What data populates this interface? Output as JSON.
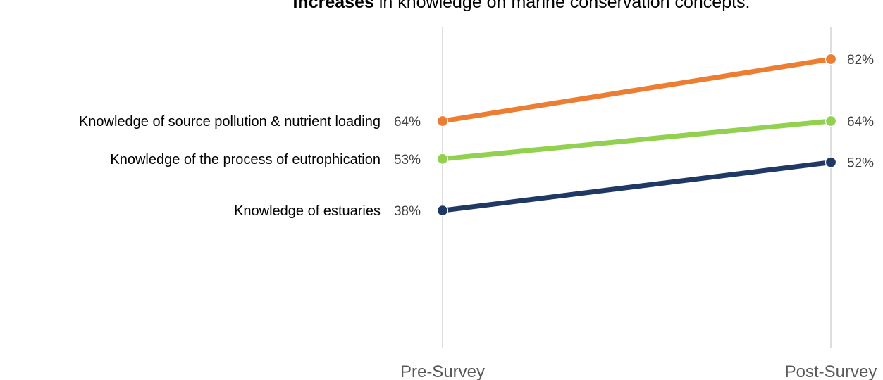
{
  "chart_data": {
    "type": "line",
    "title_bold": "Increases",
    "title_rest": " in knowledge on marine conservation concepts.",
    "categories": [
      "Pre-Survey",
      "Post-Survey"
    ],
    "ylim": [
      0,
      100
    ],
    "grid": false,
    "legend": "none",
    "series": [
      {
        "name": "Knowledge of source pollution & nutrient loading",
        "values": [
          64,
          82
        ],
        "labels": [
          "64%",
          "82%"
        ],
        "color": "#ed7d31"
      },
      {
        "name": "Knowledge of the process of eutrophication",
        "values": [
          53,
          64
        ],
        "labels": [
          "53%",
          "64%"
        ],
        "color": "#92d050"
      },
      {
        "name": "Knowledge of estuaries",
        "values": [
          38,
          52
        ],
        "labels": [
          "38%",
          "52%"
        ],
        "color": "#1f3864"
      }
    ]
  }
}
